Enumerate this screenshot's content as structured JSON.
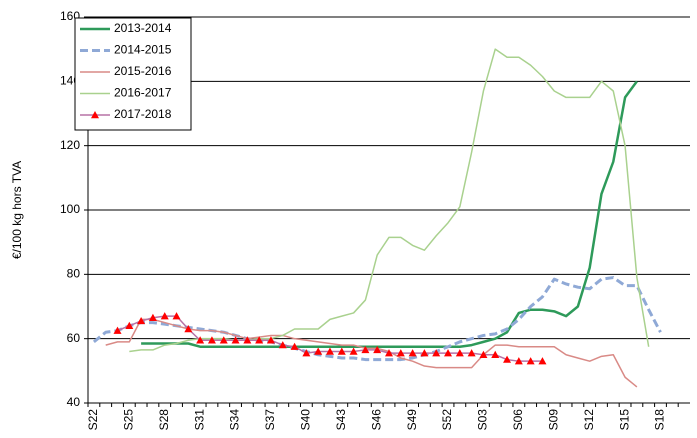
{
  "chart_data": {
    "type": "line",
    "y_label": "€/100 kg hors TVA",
    "categories": [
      "S22",
      null,
      null,
      "S25",
      null,
      null,
      "S28",
      null,
      null,
      "S31",
      null,
      null,
      "S34",
      null,
      null,
      "S37",
      null,
      null,
      "S40",
      null,
      null,
      "S43",
      null,
      null,
      "S46",
      null,
      null,
      "S49",
      null,
      null,
      "S52",
      null,
      null,
      "S03",
      null,
      null,
      "S06",
      null,
      null,
      "S09",
      null,
      null,
      "S12",
      null,
      null,
      "S15",
      null,
      null,
      "S18",
      null,
      null
    ],
    "ylim": [
      40,
      160
    ],
    "yticks": [
      40,
      60,
      80,
      100,
      120,
      140,
      160
    ],
    "grid": true,
    "legend": "upper left",
    "series": [
      {
        "name": "2013-2014",
        "color": "#2e9a5a",
        "style": "solid",
        "width": 2.5,
        "values": [
          null,
          null,
          null,
          null,
          58.5,
          58.5,
          58.5,
          58.5,
          58.5,
          57.5,
          57.5,
          57.5,
          57.5,
          57.5,
          57.5,
          57.5,
          57.5,
          57.5,
          57.5,
          57.5,
          57.5,
          57.5,
          57.5,
          57.5,
          57.5,
          57.5,
          57.5,
          57.5,
          57.5,
          57.5,
          57.5,
          57.5,
          58,
          59,
          60,
          62,
          68,
          69,
          69,
          68.5,
          67,
          70,
          82,
          105,
          115,
          135,
          140,
          null,
          null,
          null,
          null
        ]
      },
      {
        "name": "2014-2015",
        "color": "#8fa9d6",
        "style": "dashed",
        "width": 3,
        "values": [
          59,
          62,
          62.5,
          64,
          65,
          65,
          64.5,
          64,
          63.5,
          63,
          62.5,
          62,
          61,
          60,
          59.5,
          59,
          58,
          57,
          56,
          55,
          54.5,
          54,
          54,
          53.5,
          53.5,
          53.5,
          53.5,
          54,
          55,
          56,
          57.5,
          59,
          60,
          61,
          61.5,
          63,
          66,
          70,
          73,
          78.5,
          77,
          76,
          75.5,
          78.5,
          79,
          76.5,
          76.5,
          69,
          62,
          null,
          null
        ]
      },
      {
        "name": "2015-2016",
        "color": "#d98a86",
        "style": "solid",
        "width": 1.5,
        "values": [
          null,
          58,
          59,
          59,
          66,
          66,
          65,
          64,
          63,
          62.5,
          62.5,
          62,
          61,
          60,
          60.5,
          61,
          61,
          60,
          59.5,
          59,
          58.5,
          58,
          58,
          57,
          57,
          56,
          54,
          53,
          51.5,
          51,
          51,
          51,
          51,
          55,
          58,
          58,
          57.5,
          57.5,
          57.5,
          57.5,
          55,
          54,
          53,
          54.5,
          55,
          48,
          45,
          null,
          null,
          null,
          null
        ]
      },
      {
        "name": "2016-2017",
        "color": "#a9d18e",
        "style": "solid",
        "width": 1.5,
        "values": [
          null,
          null,
          null,
          56,
          56.5,
          56.5,
          58,
          58.5,
          59.5,
          60,
          60,
          60,
          59.5,
          59.5,
          60,
          60,
          61,
          63,
          63,
          63,
          66,
          67,
          68,
          72,
          86,
          91.5,
          91.5,
          89,
          87.5,
          92,
          96,
          101,
          118,
          137,
          150,
          147.5,
          147.5,
          145,
          141.5,
          137,
          135,
          135,
          135,
          140,
          137,
          120,
          79,
          57.5,
          null,
          null,
          null
        ]
      },
      {
        "name": "2017-2018",
        "color": "#b772a6",
        "marker_color": "#ff0000",
        "marker": "triangle",
        "style": "solid",
        "width": 1.5,
        "values": [
          null,
          null,
          62.5,
          64,
          65.5,
          66.5,
          67,
          67,
          63,
          59.5,
          59.5,
          59.5,
          59.5,
          59.5,
          59.5,
          59.5,
          58,
          57.5,
          55.5,
          56,
          56,
          56,
          56,
          56.5,
          56.5,
          55.5,
          55.5,
          55.5,
          55.5,
          55.5,
          55.5,
          55.5,
          55.5,
          55,
          55,
          53.5,
          53,
          53,
          53,
          null,
          null,
          null,
          null,
          null,
          null,
          null,
          null,
          null,
          null,
          null,
          null
        ]
      }
    ]
  }
}
